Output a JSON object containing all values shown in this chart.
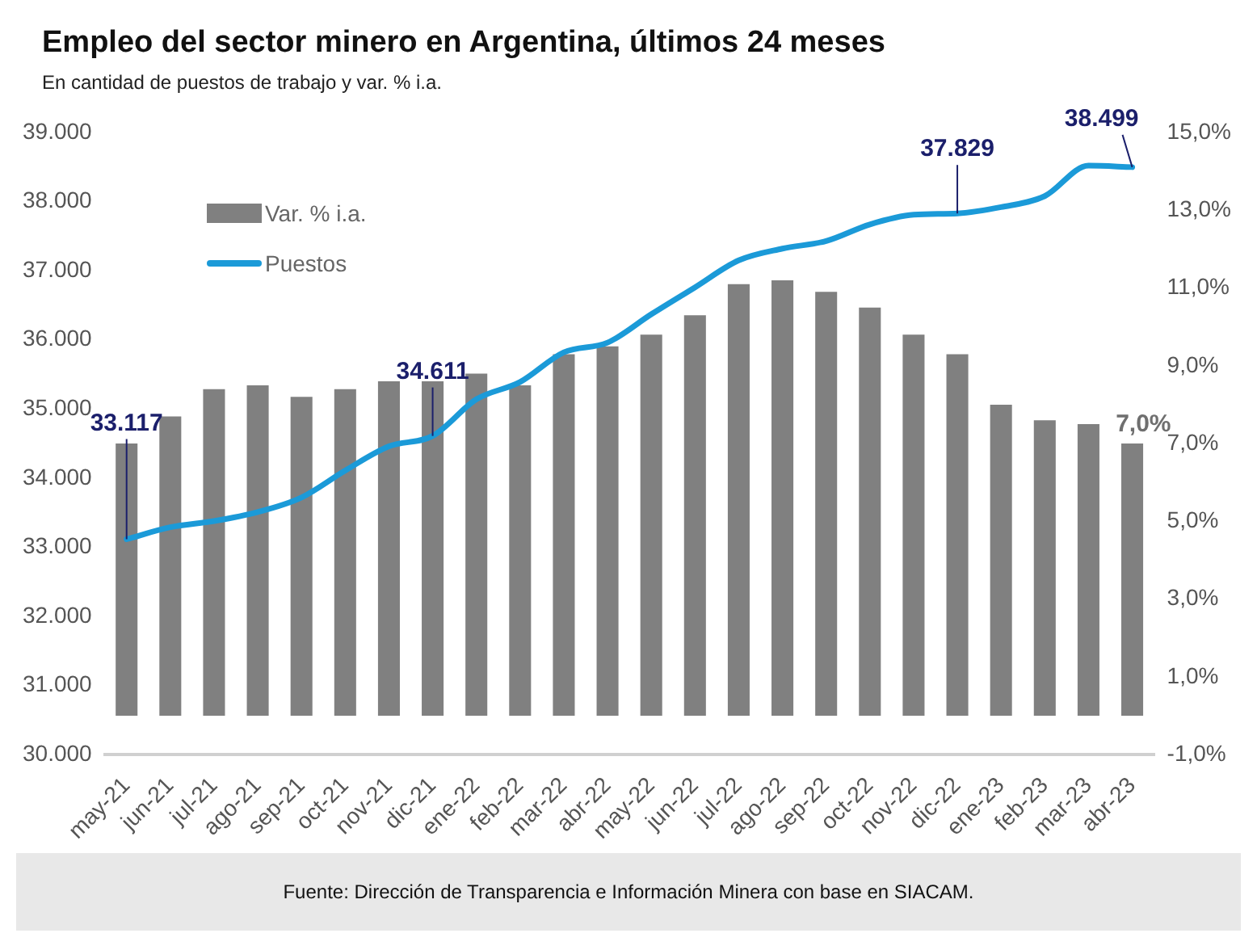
{
  "chart_data": {
    "type": "bar",
    "title": "Empleo del sector minero en Argentina, últimos 24 meses",
    "subtitle": "En cantidad de puestos de trabajo y var. % i.a.",
    "categories": [
      "may-21",
      "jun-21",
      "jul-21",
      "ago-21",
      "sep-21",
      "oct-21",
      "nov-21",
      "dic-21",
      "ene-22",
      "feb-22",
      "mar-22",
      "abr-22",
      "may-22",
      "jun-22",
      "jul-22",
      "ago-22",
      "sep-22",
      "oct-22",
      "nov-22",
      "dic-22",
      "ene-23",
      "feb-23",
      "mar-23",
      "abr-23"
    ],
    "series": [
      {
        "name": "Var. % i.a.",
        "axis": "y2",
        "color": "#808080",
        "values": [
          7.0,
          7.7,
          8.4,
          8.5,
          8.2,
          8.4,
          8.6,
          8.6,
          8.8,
          8.5,
          9.3,
          9.5,
          9.8,
          10.3,
          11.1,
          11.2,
          10.9,
          10.5,
          9.8,
          9.3,
          8.0,
          7.6,
          7.5,
          7.0
        ],
        "value_labels": [
          null,
          null,
          null,
          null,
          null,
          null,
          null,
          null,
          null,
          null,
          null,
          null,
          null,
          null,
          null,
          null,
          null,
          null,
          null,
          null,
          null,
          null,
          null,
          "7,0%"
        ]
      },
      {
        "name": "Puestos",
        "type": "line",
        "color": "#1b9ad8",
        "values": [
          33117,
          33290,
          33380,
          33510,
          33720,
          34110,
          34460,
          34611,
          35140,
          35390,
          35820,
          35960,
          36370,
          36760,
          37150,
          37320,
          37430,
          37670,
          37810,
          37829,
          37920,
          38080,
          38520,
          38499
        ],
        "value_labels": [
          "33.117",
          null,
          null,
          null,
          null,
          null,
          null,
          "34.611",
          null,
          null,
          null,
          null,
          null,
          null,
          null,
          null,
          null,
          null,
          null,
          "37.829",
          null,
          null,
          null,
          "38.499"
        ]
      }
    ],
    "ylim": [
      30000,
      39000
    ],
    "yticks": [
      {
        "value": 30000,
        "label": "30.000"
      },
      {
        "value": 31000,
        "label": "31.000"
      },
      {
        "value": 32000,
        "label": "32.000"
      },
      {
        "value": 33000,
        "label": "33.000"
      },
      {
        "value": 34000,
        "label": "34.000"
      },
      {
        "value": 35000,
        "label": "35.000"
      },
      {
        "value": 36000,
        "label": "36.000"
      },
      {
        "value": 37000,
        "label": "37.000"
      },
      {
        "value": 38000,
        "label": "38.000"
      },
      {
        "value": 39000,
        "label": "39.000"
      }
    ],
    "y2lim": [
      -1,
      15
    ],
    "y2ticks": [
      {
        "value": -1,
        "label": "-1,0%"
      },
      {
        "value": 1,
        "label": "1,0%"
      },
      {
        "value": 3,
        "label": "3,0%"
      },
      {
        "value": 5,
        "label": "5,0%"
      },
      {
        "value": 7,
        "label": "7,0%"
      },
      {
        "value": 9,
        "label": "9,0%"
      },
      {
        "value": 11,
        "label": "11,0%"
      },
      {
        "value": 13,
        "label": "13,0%"
      },
      {
        "value": 15,
        "label": "15,0%"
      }
    ],
    "grid": false,
    "legend": "top left",
    "marker": "none",
    "line_style": "solid",
    "annotations": [
      "Fuente: Dirección de Transparencia e Información Minera con base en SIACAM."
    ]
  }
}
